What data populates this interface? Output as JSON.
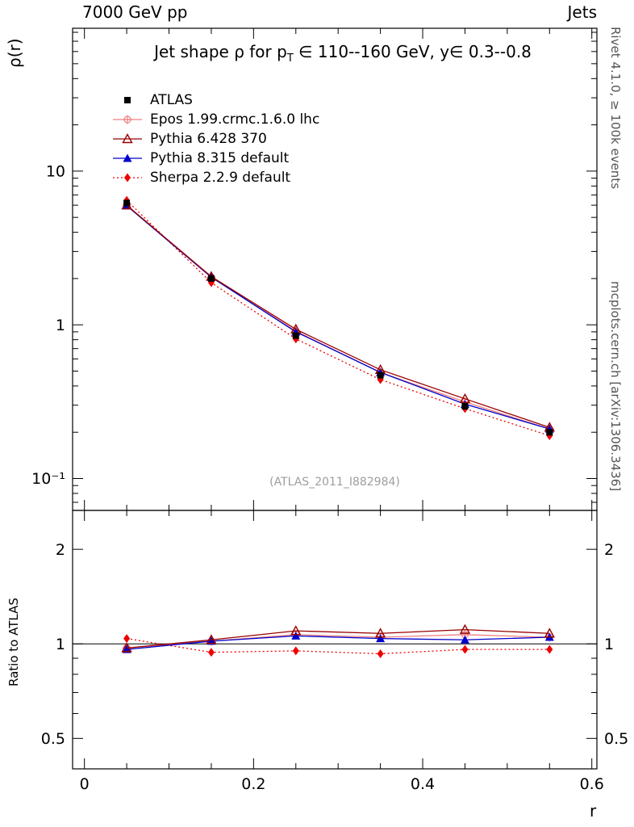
{
  "header": {
    "left": "7000 GeV pp",
    "right": "Jets"
  },
  "titles": {
    "main_pre": "Jet shape ρ for p",
    "main_sub": "T",
    "main_post": " ∈ 110--160 GeV, y∈ 0.3--0.8",
    "watermark": "(ATLAS_2011_I882984)",
    "rivet": "Rivet 4.1.0, ≥ 100k events",
    "mcplots": "mcplots.cern.ch [arXiv:1306.3436]"
  },
  "chart_data": {
    "type": "line",
    "title": "Jet shape ρ for pT ∈ 110--160 GeV, y ∈ 0.3--0.8",
    "xlabel": "r",
    "ylabel_main": "ρ(r)",
    "ylabel_ratio": "Ratio to ATLAS",
    "x": [
      0.05,
      0.15,
      0.25,
      0.35,
      0.45,
      0.55
    ],
    "axes": {
      "x": {
        "min": -0.014,
        "max": 0.606,
        "major": [
          0,
          0.2,
          0.4,
          0.6
        ],
        "labels": [
          "0",
          "0.2",
          "0.4",
          "0.6"
        ]
      },
      "y_main": {
        "scale": "log",
        "min": 0.062,
        "max": 85,
        "major": [
          10,
          1,
          0.1
        ],
        "labels": [
          "10",
          "1",
          "10⁻¹"
        ]
      },
      "y_ratio": {
        "scale": "log",
        "min": 0.4,
        "max": 2.66,
        "major": [
          2,
          1,
          0.5
        ],
        "labels": [
          "2",
          "1",
          "0.5"
        ]
      }
    },
    "series": [
      {
        "name": "ATLAS",
        "color": "#000000",
        "marker": "square",
        "line": "none",
        "values": [
          6.2,
          2.0,
          0.85,
          0.47,
          0.295,
          0.2
        ],
        "err": [
          0.25,
          0.07,
          0.03,
          0.018,
          0.012,
          0.008
        ],
        "ratio": null
      },
      {
        "name": "Epos 1.99.crmc.1.6.0 lhc",
        "color": "#f08080",
        "marker": "circle-plus",
        "line": "solid",
        "values": [
          6.0,
          2.04,
          0.91,
          0.49,
          0.315,
          0.21
        ],
        "ratio": [
          0.97,
          1.02,
          1.07,
          1.05,
          1.07,
          1.05
        ]
      },
      {
        "name": "Pythia 6.428 370",
        "color": "#990000",
        "marker": "triangle-open",
        "line": "solid",
        "values": [
          6.0,
          2.06,
          0.935,
          0.51,
          0.33,
          0.215
        ],
        "ratio": [
          0.97,
          1.03,
          1.1,
          1.08,
          1.11,
          1.08
        ]
      },
      {
        "name": "Pythia 8.315 default",
        "color": "#0000cc",
        "marker": "triangle",
        "line": "solid",
        "values": [
          5.95,
          2.04,
          0.9,
          0.49,
          0.305,
          0.21
        ],
        "ratio": [
          0.96,
          1.02,
          1.06,
          1.04,
          1.03,
          1.05
        ]
      },
      {
        "name": "Sherpa 2.2.9 default",
        "color": "#ee0000",
        "marker": "diamond",
        "line": "dotted",
        "values": [
          6.45,
          1.88,
          0.81,
          0.44,
          0.285,
          0.19
        ],
        "ratio": [
          1.04,
          0.94,
          0.95,
          0.93,
          0.96,
          0.96
        ]
      }
    ],
    "reference_line": {
      "panel": "ratio",
      "y": 1
    },
    "legend_position": "top-left",
    "grid": false
  }
}
